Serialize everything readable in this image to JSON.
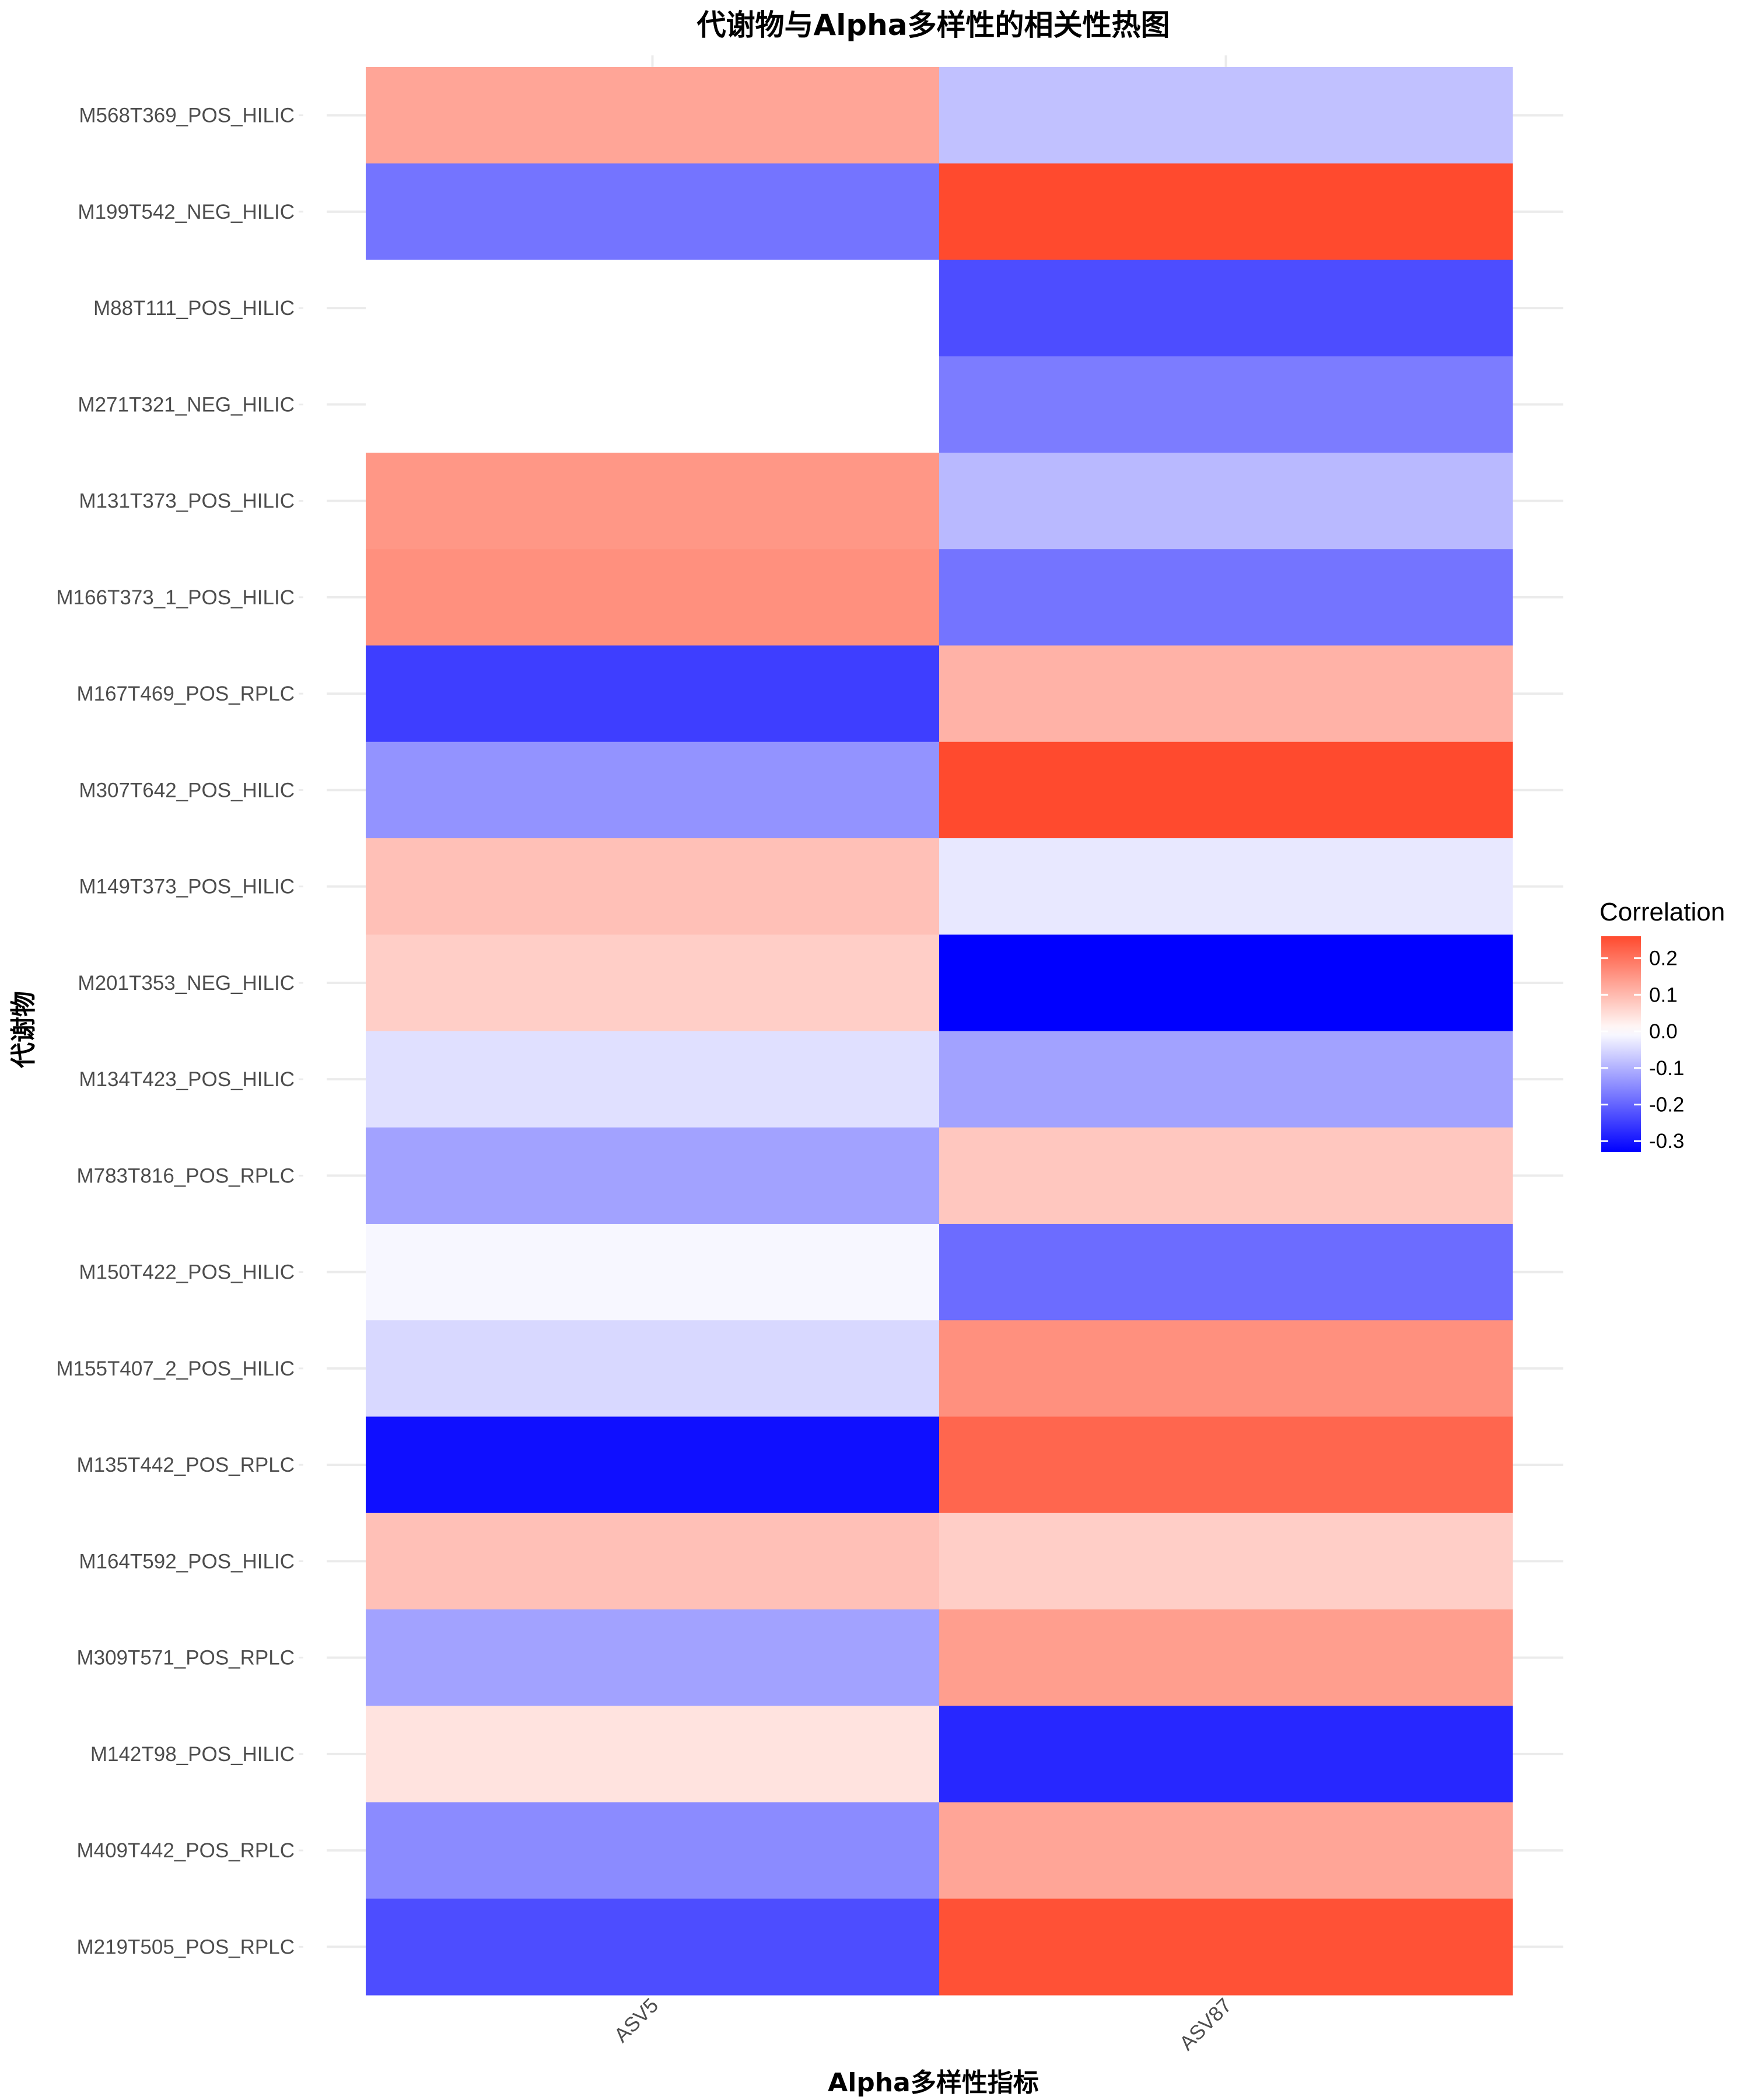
{
  "chart_data": {
    "type": "heatmap",
    "title": "代谢物与Alpha多样性的相关性热图",
    "xlabel": "Alpha多样性指标",
    "ylabel": "代谢物",
    "x_categories": [
      "ASV5",
      "ASV87"
    ],
    "y_categories": [
      "M568T369_POS_HILIC",
      "M199T542_NEG_HILIC",
      "M88T111_POS_HILIC",
      "M271T321_NEG_HILIC",
      "M131T373_POS_HILIC",
      "M166T373_1_POS_HILIC",
      "M167T469_POS_RPLC",
      "M307T642_POS_HILIC",
      "M149T373_POS_HILIC",
      "M201T353_NEG_HILIC",
      "M134T423_POS_HILIC",
      "M783T816_POS_RPLC",
      "M150T422_POS_HILIC",
      "M155T407_2_POS_HILIC",
      "M135T442_POS_RPLC",
      "M164T592_POS_HILIC",
      "M309T571_POS_RPLC",
      "M142T98_POS_HILIC",
      "M409T442_POS_RPLC",
      "M219T505_POS_RPLC"
    ],
    "values": [
      [
        0.13,
        -0.08
      ],
      [
        -0.18,
        0.26
      ],
      [
        0.0,
        -0.23
      ],
      [
        0.0,
        -0.17
      ],
      [
        0.15,
        -0.09
      ],
      [
        0.16,
        -0.18
      ],
      [
        -0.25,
        0.11
      ],
      [
        -0.14,
        0.26
      ],
      [
        0.09,
        -0.03
      ],
      [
        0.07,
        -0.33
      ],
      [
        -0.04,
        -0.12
      ],
      [
        -0.12,
        0.08
      ],
      [
        -0.01,
        -0.19
      ],
      [
        -0.05,
        0.16
      ],
      [
        -0.31,
        0.22
      ],
      [
        0.09,
        0.07
      ],
      [
        -0.12,
        0.14
      ],
      [
        0.04,
        -0.28
      ],
      [
        -0.15,
        0.13
      ],
      [
        -0.23,
        0.25
      ]
    ],
    "legend": {
      "title": "Correlation",
      "ticks": [
        0.2,
        0.1,
        0.0,
        -0.1,
        -0.2,
        -0.3
      ],
      "tick_labels": [
        "0.2",
        "0.1",
        "0.0",
        "-0.1",
        "-0.2",
        "-0.3"
      ],
      "limits": [
        -0.33,
        0.26
      ],
      "position": "right"
    },
    "colors": {
      "low": "#0000FF",
      "mid": "#FFFFFF",
      "high": "#FF4A2E"
    },
    "grid": true
  }
}
